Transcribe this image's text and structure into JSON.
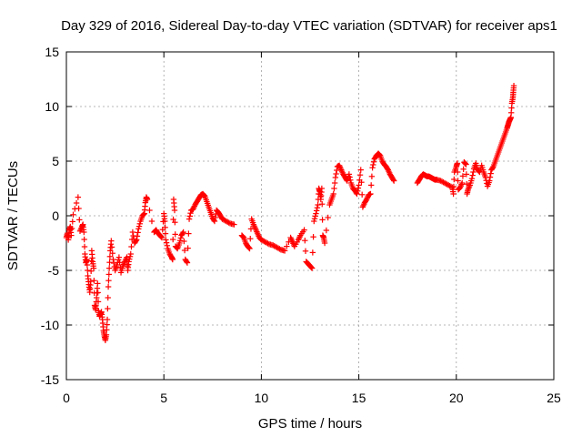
{
  "chart_data": {
    "type": "scatter",
    "title": "Day 329 of 2016, Sidereal Day-to-day VTEC variation (SDTVAR) for receiver aps1",
    "xlabel": "GPS time / hours",
    "ylabel": "SDTVAR / TECUs",
    "xlim": [
      0,
      25
    ],
    "ylim": [
      -15,
      15
    ],
    "xticks": [
      "0",
      "5",
      "10",
      "15",
      "20",
      "25"
    ],
    "yticks": [
      "-15",
      "-10",
      "-5",
      "0",
      "5",
      "10",
      "15"
    ],
    "grid": true,
    "marker": "+",
    "color": "#ff0000",
    "series": [
      {
        "name": "SDTVAR",
        "points": [
          [
            0.0,
            -2.0
          ],
          [
            0.05,
            -1.6
          ],
          [
            0.1,
            -2.2
          ],
          [
            0.15,
            -1.3
          ],
          [
            0.2,
            -1.0
          ],
          [
            0.25,
            -1.8
          ],
          [
            0.35,
            0.1
          ],
          [
            0.6,
            1.7
          ],
          [
            0.7,
            -1.4
          ],
          [
            0.8,
            -1.0
          ],
          [
            0.85,
            -0.8
          ],
          [
            0.9,
            -1.5
          ],
          [
            0.95,
            -3.5
          ],
          [
            1.0,
            -4.3
          ],
          [
            1.05,
            -4.0
          ],
          [
            1.1,
            -5.5
          ],
          [
            1.15,
            -6.3
          ],
          [
            1.2,
            -7.0
          ],
          [
            1.25,
            -6.0
          ],
          [
            1.3,
            -3.2
          ],
          [
            1.35,
            -4.2
          ],
          [
            1.4,
            -4.8
          ],
          [
            1.45,
            -8.2
          ],
          [
            1.5,
            -8.6
          ],
          [
            1.55,
            -7.5
          ],
          [
            1.6,
            -6.2
          ],
          [
            1.65,
            -8.7
          ],
          [
            1.7,
            -9.2
          ],
          [
            1.75,
            -9.0
          ],
          [
            1.8,
            -8.8
          ],
          [
            1.85,
            -9.5
          ],
          [
            1.9,
            -10.5
          ],
          [
            1.95,
            -11.0
          ],
          [
            2.0,
            -11.4
          ],
          [
            2.05,
            -10.9
          ],
          [
            2.1,
            -9.5
          ],
          [
            2.15,
            -6.5
          ],
          [
            2.2,
            -4.8
          ],
          [
            2.25,
            -3.2
          ],
          [
            2.3,
            -2.3
          ],
          [
            2.4,
            -4.0
          ],
          [
            2.5,
            -5.0
          ],
          [
            2.6,
            -4.5
          ],
          [
            2.7,
            -3.8
          ],
          [
            2.8,
            -5.2
          ],
          [
            2.9,
            -4.6
          ],
          [
            3.0,
            -4.2
          ],
          [
            3.1,
            -3.8
          ],
          [
            3.15,
            -5.0
          ],
          [
            3.2,
            -4.2
          ],
          [
            3.3,
            -3.5
          ],
          [
            3.4,
            -1.5
          ],
          [
            3.5,
            -2.5
          ],
          [
            3.6,
            -2.2
          ],
          [
            3.7,
            -1.2
          ],
          [
            3.8,
            -0.5
          ],
          [
            3.9,
            0.0
          ],
          [
            4.0,
            0.2
          ],
          [
            4.05,
            1.2
          ],
          [
            4.1,
            1.7
          ],
          [
            4.15,
            1.5
          ],
          [
            4.5,
            -1.5
          ],
          [
            4.6,
            -1.3
          ],
          [
            4.7,
            -1.6
          ],
          [
            4.8,
            -1.8
          ],
          [
            4.9,
            -2.0
          ],
          [
            5.0,
            0.2
          ],
          [
            5.05,
            -0.5
          ],
          [
            5.1,
            -2.2
          ],
          [
            5.2,
            -3.0
          ],
          [
            5.3,
            -3.5
          ],
          [
            5.4,
            -3.8
          ],
          [
            5.45,
            -4.0
          ],
          [
            5.5,
            1.5
          ],
          [
            5.55,
            0.5
          ],
          [
            5.6,
            -2.8
          ],
          [
            5.7,
            -3.0
          ],
          [
            5.8,
            -2.5
          ],
          [
            5.9,
            -1.8
          ],
          [
            6.0,
            -1.5
          ],
          [
            6.1,
            -4.0
          ],
          [
            6.2,
            -4.3
          ],
          [
            6.3,
            -0.3
          ],
          [
            6.4,
            0.5
          ],
          [
            6.5,
            0.6
          ],
          [
            6.6,
            1.0
          ],
          [
            6.7,
            1.3
          ],
          [
            6.8,
            1.6
          ],
          [
            6.9,
            1.9
          ],
          [
            7.0,
            2.0
          ],
          [
            7.1,
            1.8
          ],
          [
            7.2,
            1.3
          ],
          [
            7.3,
            0.8
          ],
          [
            7.4,
            0.3
          ],
          [
            7.5,
            -0.2
          ],
          [
            7.6,
            -0.5
          ],
          [
            7.7,
            0.5
          ],
          [
            7.8,
            0.3
          ],
          [
            7.9,
            0.0
          ],
          [
            8.0,
            -0.3
          ],
          [
            8.2,
            -0.5
          ],
          [
            8.4,
            -0.7
          ],
          [
            8.6,
            -0.8
          ],
          [
            9.0,
            -1.8
          ],
          [
            9.1,
            -2.0
          ],
          [
            9.2,
            -2.5
          ],
          [
            9.3,
            -2.8
          ],
          [
            9.4,
            -3.0
          ],
          [
            9.5,
            -0.3
          ],
          [
            9.6,
            -0.8
          ],
          [
            9.7,
            -1.2
          ],
          [
            9.8,
            -1.6
          ],
          [
            9.9,
            -2.0
          ],
          [
            10.0,
            -2.2
          ],
          [
            10.2,
            -2.4
          ],
          [
            10.4,
            -2.6
          ],
          [
            10.6,
            -2.7
          ],
          [
            10.8,
            -2.9
          ],
          [
            11.0,
            -3.1
          ],
          [
            11.2,
            -3.2
          ],
          [
            11.5,
            -2.0
          ],
          [
            11.6,
            -2.4
          ],
          [
            11.7,
            -2.8
          ],
          [
            11.9,
            -2.2
          ],
          [
            12.0,
            -1.8
          ],
          [
            12.2,
            -1.3
          ],
          [
            12.3,
            -4.2
          ],
          [
            12.4,
            -4.4
          ],
          [
            12.5,
            -4.6
          ],
          [
            12.6,
            -4.8
          ],
          [
            12.7,
            -0.5
          ],
          [
            12.8,
            0.2
          ],
          [
            12.9,
            1.0
          ],
          [
            12.95,
            2.5
          ],
          [
            13.0,
            2.2
          ],
          [
            13.05,
            1.5
          ],
          [
            13.1,
            2.5
          ],
          [
            13.15,
            -1.8
          ],
          [
            13.2,
            -2.0
          ],
          [
            13.25,
            -2.5
          ],
          [
            13.5,
            1.0
          ],
          [
            13.6,
            1.5
          ],
          [
            13.7,
            2.0
          ],
          [
            13.8,
            3.5
          ],
          [
            13.9,
            4.5
          ],
          [
            14.0,
            4.6
          ],
          [
            14.1,
            4.2
          ],
          [
            14.2,
            3.8
          ],
          [
            14.3,
            3.5
          ],
          [
            14.4,
            3.2
          ],
          [
            14.5,
            3.8
          ],
          [
            14.6,
            3.0
          ],
          [
            14.7,
            2.5
          ],
          [
            14.8,
            2.3
          ],
          [
            14.9,
            2.0
          ],
          [
            15.0,
            2.8
          ],
          [
            15.1,
            4.2
          ],
          [
            15.2,
            0.8
          ],
          [
            15.3,
            1.2
          ],
          [
            15.4,
            1.5
          ],
          [
            15.5,
            1.9
          ],
          [
            15.6,
            2.0
          ],
          [
            15.7,
            4.4
          ],
          [
            15.8,
            5.2
          ],
          [
            15.9,
            5.5
          ],
          [
            16.0,
            5.7
          ],
          [
            16.1,
            5.5
          ],
          [
            16.2,
            5.0
          ],
          [
            16.3,
            4.7
          ],
          [
            16.4,
            4.5
          ],
          [
            16.5,
            4.2
          ],
          [
            16.6,
            3.8
          ],
          [
            16.7,
            3.5
          ],
          [
            16.8,
            3.2
          ],
          [
            18.0,
            3.0
          ],
          [
            18.1,
            3.3
          ],
          [
            18.2,
            3.6
          ],
          [
            18.3,
            3.8
          ],
          [
            18.4,
            3.7
          ],
          [
            18.5,
            3.6
          ],
          [
            18.6,
            3.6
          ],
          [
            18.7,
            3.5
          ],
          [
            18.8,
            3.4
          ],
          [
            18.9,
            3.3
          ],
          [
            19.0,
            3.3
          ],
          [
            19.2,
            3.2
          ],
          [
            19.4,
            3.0
          ],
          [
            19.6,
            2.8
          ],
          [
            19.8,
            2.6
          ],
          [
            19.85,
            2.0
          ],
          [
            19.9,
            4.0
          ],
          [
            20.0,
            4.5
          ],
          [
            20.05,
            4.8
          ],
          [
            20.1,
            2.4
          ],
          [
            20.2,
            2.6
          ],
          [
            20.3,
            3.0
          ],
          [
            20.4,
            4.9
          ],
          [
            20.5,
            4.7
          ],
          [
            20.55,
            2.0
          ],
          [
            20.6,
            2.4
          ],
          [
            20.7,
            2.8
          ],
          [
            20.8,
            3.4
          ],
          [
            20.9,
            4.3
          ],
          [
            21.0,
            4.8
          ],
          [
            21.1,
            4.2
          ],
          [
            21.2,
            4.0
          ],
          [
            21.3,
            4.6
          ],
          [
            21.4,
            4.0
          ],
          [
            21.5,
            3.5
          ],
          [
            21.6,
            2.7
          ],
          [
            21.7,
            3.2
          ],
          [
            21.8,
            4.2
          ],
          [
            21.9,
            4.5
          ],
          [
            22.0,
            5.0
          ],
          [
            22.1,
            5.5
          ],
          [
            22.2,
            6.0
          ],
          [
            22.3,
            6.5
          ],
          [
            22.4,
            7.0
          ],
          [
            22.5,
            7.5
          ],
          [
            22.6,
            8.0
          ],
          [
            22.65,
            8.3
          ],
          [
            22.7,
            8.6
          ],
          [
            22.75,
            8.8
          ],
          [
            22.8,
            9.0
          ],
          [
            22.85,
            10.3
          ],
          [
            22.9,
            10.8
          ],
          [
            22.92,
            11.3
          ],
          [
            22.95,
            11.9
          ]
        ]
      }
    ]
  }
}
